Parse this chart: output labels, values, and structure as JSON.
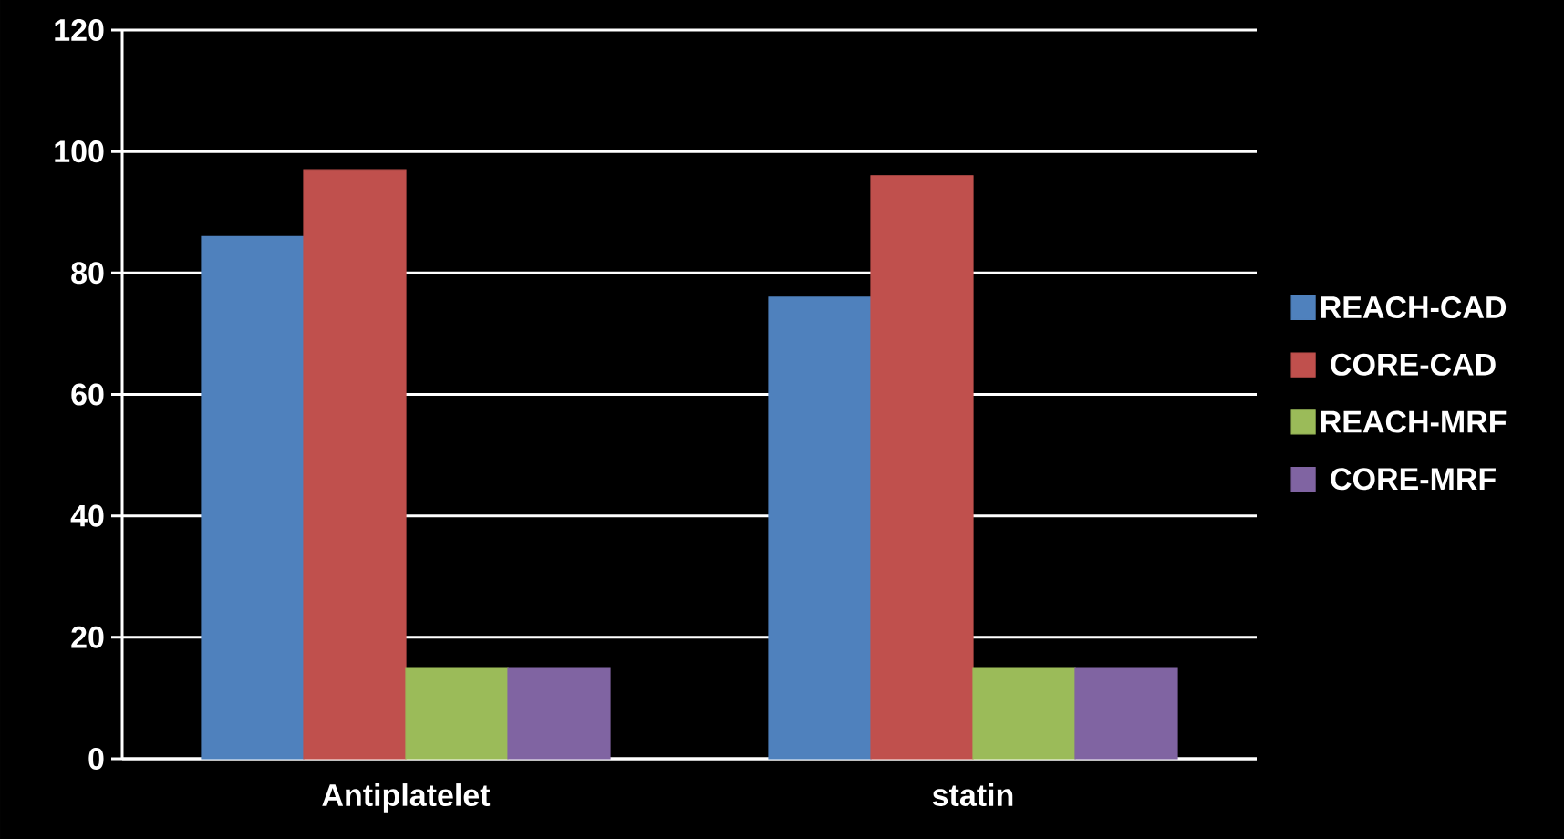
{
  "chart_data": {
    "type": "bar",
    "categories": [
      "Antiplatelet",
      "statin"
    ],
    "series": [
      {
        "name": "REACH-CAD",
        "color": "#4f81bd",
        "values": [
          86,
          76
        ]
      },
      {
        "name": "CORE-CAD",
        "color": "#c0504d",
        "values": [
          97,
          96
        ]
      },
      {
        "name": "REACH-MRF",
        "color": "#9bbb59",
        "values": [
          15,
          15
        ]
      },
      {
        "name": "CORE-MRF",
        "color": "#8064a2",
        "values": [
          15,
          15
        ]
      }
    ],
    "ylim": [
      0,
      120
    ],
    "yticks": [
      0,
      20,
      40,
      60,
      80,
      100,
      120
    ],
    "grid": "y",
    "legend": "right"
  }
}
